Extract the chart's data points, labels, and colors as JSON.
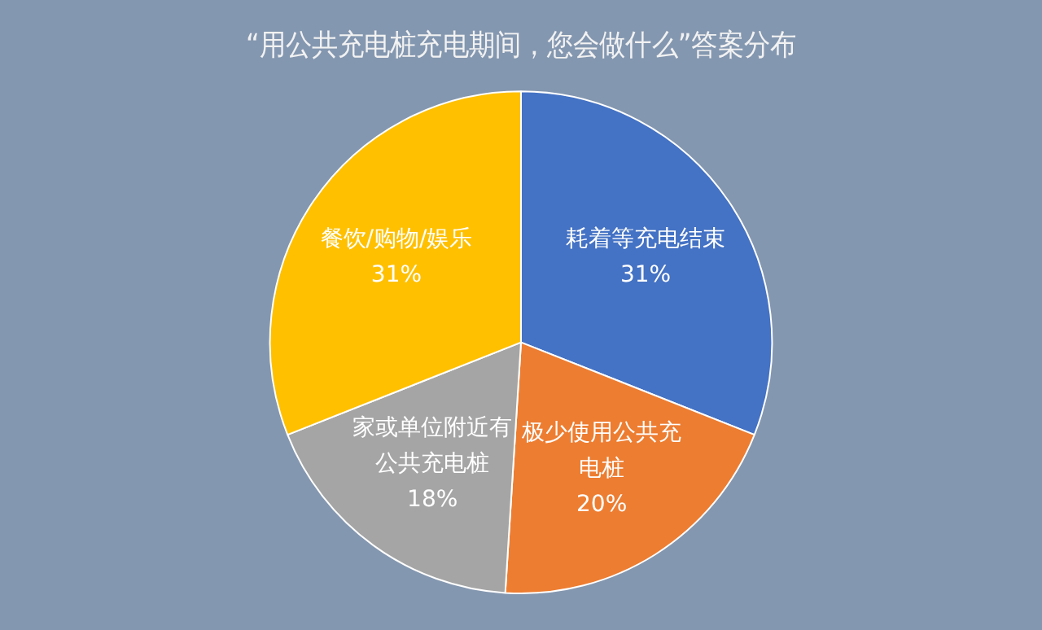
{
  "chart_data": {
    "type": "pie",
    "title": "“用公共充电桩充电期间，您会做什么”答案分布",
    "categories": [
      "耗着等充电结束",
      "极少使用公共充电桩",
      "家或单位附近有公共充电桩",
      "餐饮/购物/娱乐"
    ],
    "values": [
      31,
      20,
      18,
      31
    ],
    "value_labels": [
      "31%",
      "20%",
      "18%",
      "31%"
    ],
    "colors": [
      "#4472c4",
      "#ed7d31",
      "#a5a5a5",
      "#ffc000"
    ],
    "legend": false
  }
}
